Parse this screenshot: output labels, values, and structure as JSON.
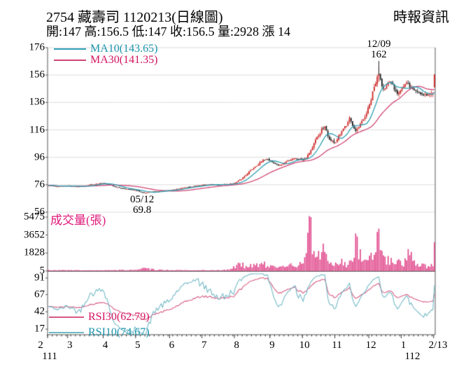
{
  "header": {
    "title": "2754 藏壽司 1120213(日線圖)",
    "source": "時報資訊",
    "quote_line": "開:147 高:156.5 低:147 收:156.5 量:2928 漲 14",
    "quote": {
      "open": "147",
      "high": "156.5",
      "low": "147",
      "close": "156.5",
      "volume": "2928",
      "change": "漲 14"
    }
  },
  "colors": {
    "up_candle": "#cc2222",
    "down_candle": "#1c1c1c",
    "ma10_line": "#2e9fb4",
    "ma10_text": "#1b93ac",
    "ma30_line": "#d04573",
    "ma30_text": "#d4145f",
    "rsi10_line": "#72b9c6",
    "rsi30_line": "#d65c82",
    "volume_bar": "#df3f86",
    "volume_title": "#e0187a",
    "grid": "#dddddd",
    "frame": "#555555",
    "axis_text": "#000000"
  },
  "chart_data": [
    {
      "type": "candlestick",
      "panel": "price",
      "legend": [
        {
          "label": "MA10(143.65)",
          "value": 143.65
        },
        {
          "label": "MA30(141.35)",
          "value": 141.35
        }
      ],
      "y_ticks": [
        176,
        156,
        136,
        116,
        96,
        76,
        56
      ],
      "ylim": [
        56,
        176
      ],
      "x_ticks": [
        "2",
        "3",
        "4",
        "5",
        "6",
        "7",
        "8",
        "9",
        "10",
        "11",
        "12",
        "1",
        "2/13"
      ],
      "x_year_ticks": [
        {
          "label": "111",
          "month_index": 0
        },
        {
          "label": "112",
          "month_index": 11
        }
      ],
      "months_day_index": [
        0,
        13,
        36,
        57,
        79,
        100,
        121,
        144,
        165,
        186,
        208,
        229,
        250
      ],
      "total_days": 251,
      "annotations": [
        {
          "date": "12/09",
          "price_label": "162",
          "day": 214,
          "kind": "high"
        },
        {
          "date": "05/12",
          "price_label": "69.8",
          "day": 63,
          "kind": "low"
        }
      ],
      "today": {
        "open": 147,
        "high": 156.5,
        "low": 147,
        "close": 156.5
      },
      "close_anchors": [
        [
          0,
          75.5
        ],
        [
          6,
          74.8
        ],
        [
          13,
          75.2
        ],
        [
          20,
          74.6
        ],
        [
          27,
          76.0
        ],
        [
          33,
          76.8
        ],
        [
          36,
          77.2
        ],
        [
          40,
          76.0
        ],
        [
          44,
          74.2
        ],
        [
          48,
          73.4
        ],
        [
          52,
          72.6
        ],
        [
          57,
          71.8
        ],
        [
          60,
          70.9
        ],
        [
          63,
          70.0
        ],
        [
          66,
          70.6
        ],
        [
          70,
          71.2
        ],
        [
          75,
          71.6
        ],
        [
          79,
          72.0
        ],
        [
          84,
          73.0
        ],
        [
          90,
          74.2
        ],
        [
          95,
          75.0
        ],
        [
          100,
          75.8
        ],
        [
          105,
          76.2
        ],
        [
          110,
          76.0
        ],
        [
          115,
          76.3
        ],
        [
          121,
          77.2
        ],
        [
          125,
          80.0
        ],
        [
          129,
          84.5
        ],
        [
          133,
          88.5
        ],
        [
          137,
          92.0
        ],
        [
          141,
          95.0
        ],
        [
          144,
          93.5
        ],
        [
          147,
          91.0
        ],
        [
          150,
          90.0
        ],
        [
          153,
          92.0
        ],
        [
          156,
          94.0
        ],
        [
          159,
          95.5
        ],
        [
          162,
          94.5
        ],
        [
          165,
          94.8
        ],
        [
          168,
          97.5
        ],
        [
          171,
          103.5
        ],
        [
          174,
          110.0
        ],
        [
          177,
          116.0
        ],
        [
          179,
          117.5
        ],
        [
          181,
          111.5
        ],
        [
          183,
          108.0
        ],
        [
          186,
          107.0
        ],
        [
          189,
          112.5
        ],
        [
          191,
          116.0
        ],
        [
          193,
          120.0
        ],
        [
          195,
          126.0
        ],
        [
          197,
          118.5
        ],
        [
          199,
          114.0
        ],
        [
          201,
          117.5
        ],
        [
          204,
          123.5
        ],
        [
          206,
          128.0
        ],
        [
          208,
          134.0
        ],
        [
          211,
          147.0
        ],
        [
          214,
          157.0
        ],
        [
          216,
          149.5
        ],
        [
          218,
          145.5
        ],
        [
          220,
          149.0
        ],
        [
          222,
          151.0
        ],
        [
          224,
          146.5
        ],
        [
          226,
          143.5
        ],
        [
          229,
          146.5
        ],
        [
          232,
          149.5
        ],
        [
          234,
          148.0
        ],
        [
          236,
          146.0
        ],
        [
          238,
          144.5
        ],
        [
          240,
          143.2
        ],
        [
          242,
          142.4
        ],
        [
          244,
          142.0
        ],
        [
          246,
          141.6
        ],
        [
          248,
          142.0
        ],
        [
          249,
          142.5
        ],
        [
          250,
          156.5
        ]
      ]
    },
    {
      "type": "bar",
      "panel": "volume",
      "ylabel": "成交量(張)",
      "y_ticks": [
        5475,
        3652,
        1828,
        5
      ],
      "ylim": [
        0,
        5475
      ],
      "today_volume": 2928,
      "volume_anchors": [
        [
          0,
          80
        ],
        [
          30,
          60
        ],
        [
          57,
          110
        ],
        [
          63,
          260
        ],
        [
          70,
          120
        ],
        [
          90,
          70
        ],
        [
          110,
          90
        ],
        [
          118,
          150
        ],
        [
          121,
          420
        ],
        [
          125,
          700
        ],
        [
          128,
          380
        ],
        [
          132,
          520
        ],
        [
          136,
          600
        ],
        [
          140,
          680
        ],
        [
          144,
          520
        ],
        [
          150,
          380
        ],
        [
          155,
          480
        ],
        [
          160,
          620
        ],
        [
          164,
          750
        ],
        [
          167,
          1400
        ],
        [
          170,
          5475
        ],
        [
          171,
          2300
        ],
        [
          173,
          1800
        ],
        [
          174,
          2600
        ],
        [
          176,
          1500
        ],
        [
          178,
          1900
        ],
        [
          180,
          1300
        ],
        [
          182,
          950
        ],
        [
          184,
          750
        ],
        [
          186,
          620
        ],
        [
          188,
          540
        ],
        [
          190,
          950
        ],
        [
          192,
          720
        ],
        [
          194,
          560
        ],
        [
          196,
          850
        ],
        [
          198,
          1700
        ],
        [
          200,
          3500
        ],
        [
          201,
          2100
        ],
        [
          202,
          1500
        ],
        [
          204,
          1050
        ],
        [
          206,
          820
        ],
        [
          208,
          1250
        ],
        [
          210,
          1650
        ],
        [
          212,
          2300
        ],
        [
          214,
          4300
        ],
        [
          216,
          1550
        ],
        [
          218,
          1050
        ],
        [
          220,
          1350
        ],
        [
          222,
          950
        ],
        [
          224,
          720
        ],
        [
          226,
          1750
        ],
        [
          228,
          1150
        ],
        [
          230,
          850
        ],
        [
          232,
          950
        ],
        [
          233,
          1850
        ],
        [
          235,
          1950
        ],
        [
          237,
          1250
        ],
        [
          239,
          750
        ],
        [
          241,
          520
        ],
        [
          243,
          620
        ],
        [
          245,
          420
        ],
        [
          247,
          520
        ],
        [
          249,
          650
        ],
        [
          250,
          2928
        ]
      ]
    },
    {
      "type": "line",
      "panel": "rsi",
      "legend": [
        {
          "label": "RSI30(62.79)",
          "value": 62.79,
          "period": 30
        },
        {
          "label": "RSI10(74.67)",
          "value": 74.67,
          "period": 10
        }
      ],
      "y_ticks": [
        91,
        67,
        42,
        17
      ],
      "last_values": {
        "rsi30": 62.79,
        "rsi10": 74.67
      }
    }
  ]
}
